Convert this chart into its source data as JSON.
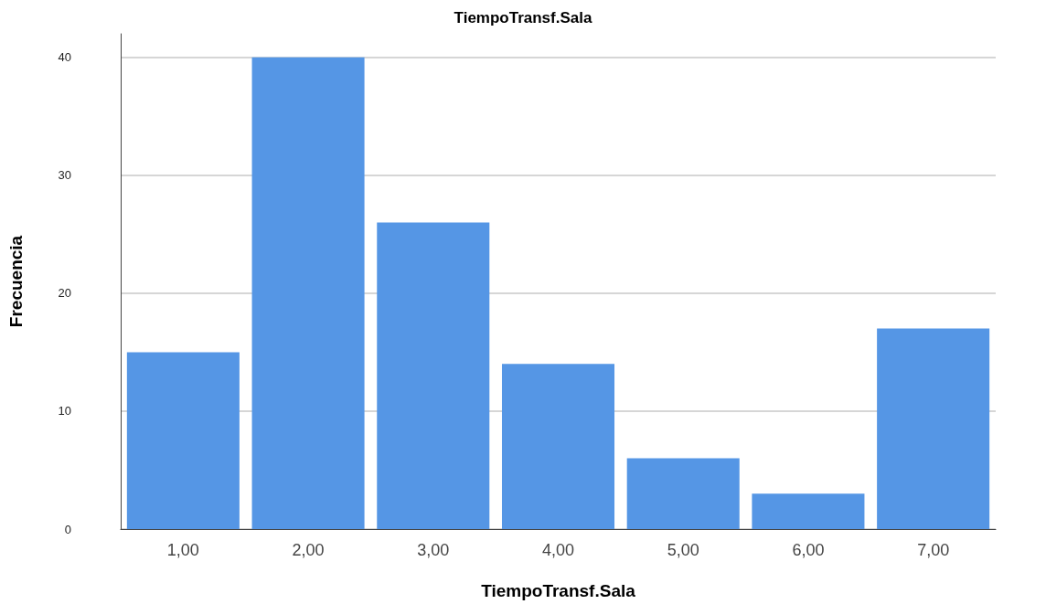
{
  "chart_data": {
    "type": "bar",
    "title": "TiempoTransf.Sala",
    "xlabel": "TiempoTransf.Sala",
    "ylabel": "Frecuencia",
    "categories": [
      "1,00",
      "2,00",
      "3,00",
      "4,00",
      "5,00",
      "6,00",
      "7,00"
    ],
    "values": [
      15,
      40,
      26,
      14,
      6,
      3,
      17
    ],
    "color": "#5596e5",
    "ylim": [
      0,
      42
    ],
    "yticks": [
      0,
      10,
      20,
      30,
      40
    ],
    "grid": "y"
  }
}
